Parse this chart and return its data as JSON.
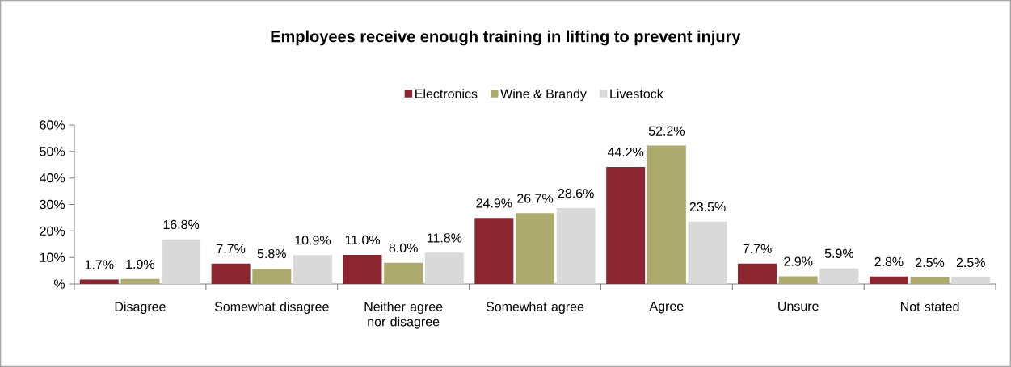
{
  "chart_data": {
    "type": "bar",
    "title": "Employees receive enough training in lifting to prevent injury",
    "categories": [
      "Disagree",
      "Somewhat disagree",
      "Neither agree nor disagree",
      "Somewhat agree",
      "Agree",
      "Unsure",
      "Not stated"
    ],
    "series": [
      {
        "name": "Electronics",
        "color": "#8b2530",
        "values": [
          1.7,
          7.7,
          11.0,
          24.9,
          44.2,
          7.7,
          2.8
        ],
        "value_labels": [
          "1.7%",
          "7.7%",
          "11.0%",
          "24.9%",
          "44.2%",
          "7.7%",
          "2.8%"
        ]
      },
      {
        "name": "Wine & Brandy",
        "color": "#adaa6e",
        "values": [
          1.9,
          5.8,
          8.0,
          26.7,
          52.2,
          2.9,
          2.5
        ],
        "value_labels": [
          "1.9%",
          "5.8%",
          "8.0%",
          "26.7%",
          "52.2%",
          "2.9%",
          "2.5%"
        ]
      },
      {
        "name": "Livestock",
        "color": "#d9d9d9",
        "values": [
          16.8,
          10.9,
          11.8,
          28.6,
          23.5,
          5.9,
          2.5
        ],
        "value_labels": [
          "16.8%",
          "10.9%",
          "11.8%",
          "28.6%",
          "23.5%",
          "5.9%",
          "2.5%"
        ]
      }
    ],
    "ylim": [
      0,
      60
    ],
    "yticks": [
      {
        "value": 0,
        "label": "%"
      },
      {
        "value": 10,
        "label": "10%"
      },
      {
        "value": 20,
        "label": "20%"
      },
      {
        "value": 30,
        "label": "30%"
      },
      {
        "value": 40,
        "label": "40%"
      },
      {
        "value": 50,
        "label": "50%"
      },
      {
        "value": 60,
        "label": "60%"
      }
    ],
    "grid": false,
    "legend": "top"
  }
}
